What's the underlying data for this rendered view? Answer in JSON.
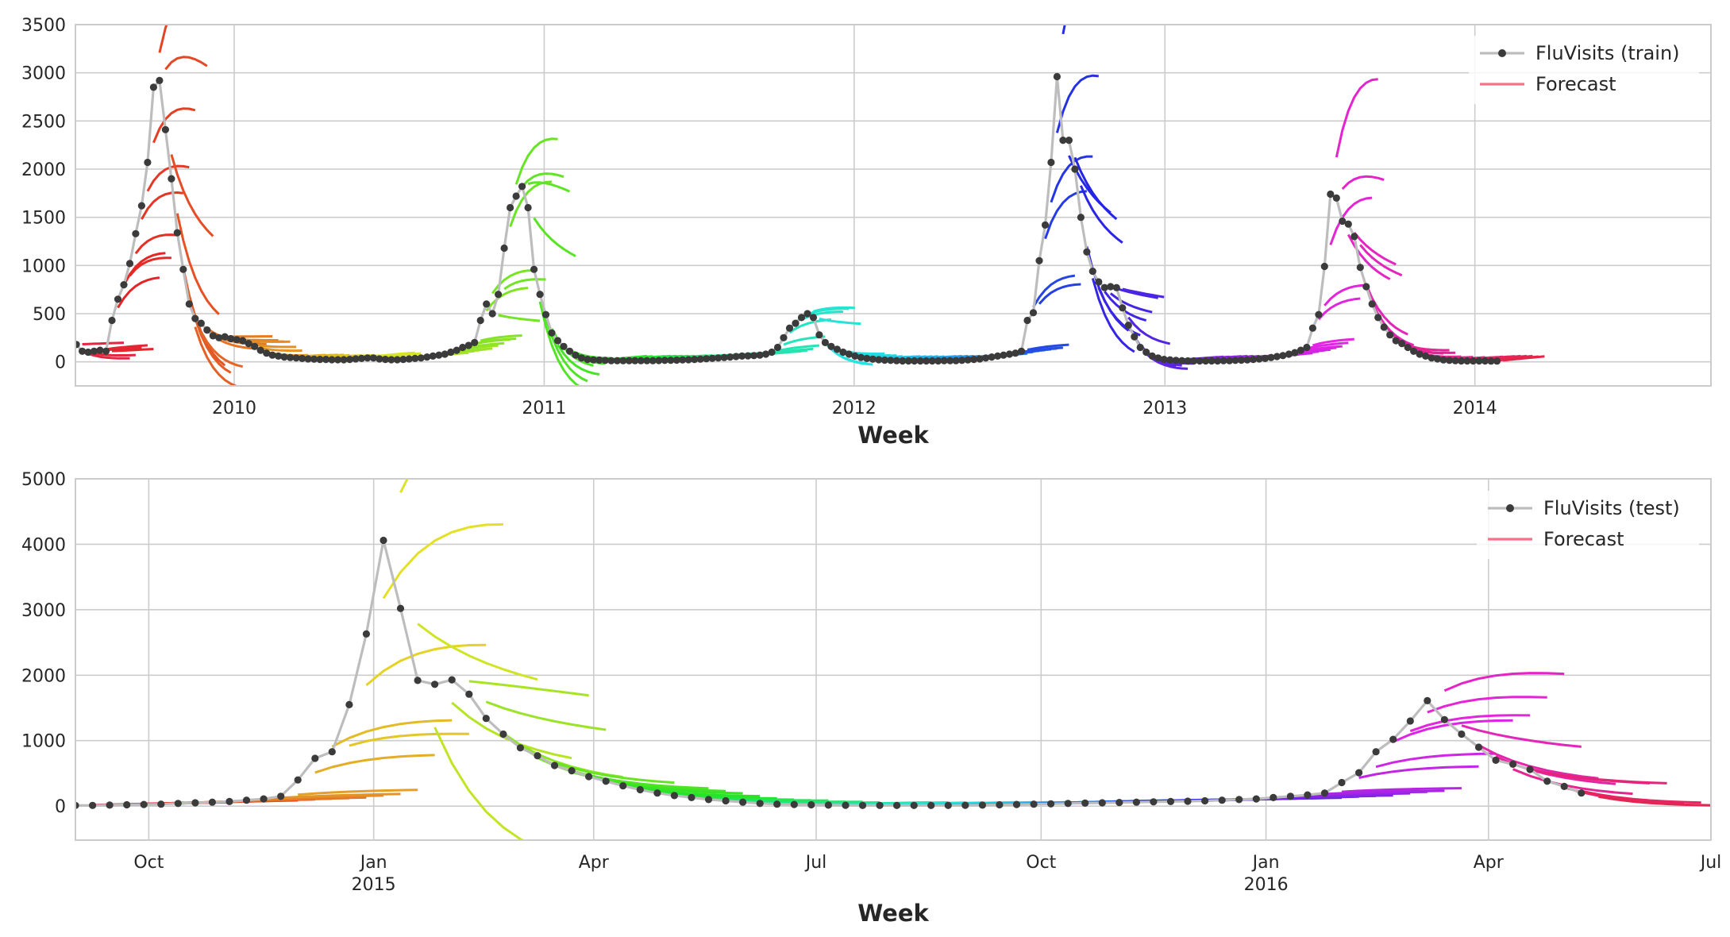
{
  "colors": {
    "background": "#ffffff",
    "grid": "#cccccc",
    "frame": "#cccccc",
    "observed_line": "#bdbdbd",
    "observed_marker": "#3b3b3b",
    "forecast_legend": "#f77189",
    "text": "#262626"
  },
  "chart_data": [
    {
      "type": "line",
      "title": "",
      "xlabel": "Week",
      "ylabel": "",
      "grid": true,
      "legend_placement": "top-right",
      "xlim": [
        "2009-06-28",
        "2014-10-06"
      ],
      "ylim": [
        -250,
        3500
      ],
      "x_ticks": [
        {
          "date": "2010-01-01",
          "label": "2010"
        },
        {
          "date": "2011-01-01",
          "label": "2011"
        },
        {
          "date": "2012-01-01",
          "label": "2012"
        },
        {
          "date": "2013-01-01",
          "label": "2013"
        },
        {
          "date": "2014-01-01",
          "label": "2014"
        }
      ],
      "y_ticks": [
        {
          "value": 0,
          "label": "0"
        },
        {
          "value": 500,
          "label": "500"
        },
        {
          "value": 1000,
          "label": "1000"
        },
        {
          "value": 1500,
          "label": "1500"
        },
        {
          "value": 2000,
          "label": "2000"
        },
        {
          "value": 2500,
          "label": "2500"
        },
        {
          "value": 3000,
          "label": "3000"
        },
        {
          "value": 3500,
          "label": "3500"
        }
      ],
      "legend": [
        {
          "label": "FluVisits (train)",
          "kind": "observed"
        },
        {
          "label": "Forecast",
          "kind": "forecast"
        }
      ],
      "observed": {
        "name": "FluVisits (train)",
        "start": "2009-06-29",
        "step_days": 7,
        "values": [
          180,
          110,
          100,
          110,
          120,
          110,
          430,
          650,
          800,
          1020,
          1330,
          1620,
          2070,
          2850,
          2920,
          2410,
          1900,
          1340,
          960,
          600,
          450,
          400,
          330,
          270,
          250,
          260,
          240,
          230,
          220,
          190,
          160,
          120,
          90,
          70,
          60,
          50,
          45,
          40,
          35,
          30,
          28,
          25,
          25,
          22,
          22,
          22,
          25,
          30,
          35,
          40,
          40,
          30,
          25,
          22,
          22,
          25,
          30,
          35,
          40,
          50,
          60,
          70,
          80,
          100,
          120,
          150,
          170,
          200,
          430,
          600,
          500,
          700,
          1180,
          1600,
          1720,
          1820,
          1600,
          960,
          700,
          490,
          300,
          220,
          160,
          110,
          70,
          40,
          25,
          20,
          18,
          15,
          12,
          12,
          12,
          12,
          12,
          12,
          12,
          12,
          14,
          15,
          16,
          18,
          20,
          22,
          25,
          28,
          32,
          36,
          40,
          45,
          50,
          55,
          60,
          62,
          65,
          70,
          80,
          100,
          150,
          250,
          350,
          400,
          460,
          500,
          460,
          280,
          200,
          160,
          130,
          100,
          80,
          60,
          45,
          35,
          28,
          22,
          18,
          15,
          12,
          10,
          10,
          10,
          10,
          10,
          10,
          10,
          12,
          12,
          12,
          15,
          20,
          25,
          30,
          40,
          50,
          60,
          70,
          80,
          90,
          110,
          430,
          510,
          1050,
          1420,
          2070,
          2960,
          2300,
          2300,
          2000,
          1500,
          1140,
          940,
          830,
          770,
          780,
          770,
          560,
          380,
          260,
          150,
          100,
          60,
          40,
          25,
          20,
          15,
          12,
          10,
          10,
          10,
          10,
          10,
          10,
          12,
          12,
          15,
          18,
          20,
          25,
          30,
          35,
          45,
          55,
          65,
          80,
          95,
          120,
          150,
          350,
          490,
          990,
          1740,
          1700,
          1460,
          1430,
          1300,
          980,
          780,
          600,
          460,
          360,
          280,
          220,
          190,
          150,
          110,
          80,
          60,
          40,
          30,
          20,
          15,
          12,
          10,
          10,
          10,
          10,
          10,
          8,
          8
        ]
      },
      "forecasts": {
        "name": "Forecast",
        "horizon_weeks": 8,
        "origin_step_weeks": 1
      }
    },
    {
      "type": "line",
      "title": "",
      "xlabel": "Week",
      "ylabel": "",
      "grid": true,
      "legend_placement": "top-right",
      "xlim": [
        "2014-09-01",
        "2016-07-01"
      ],
      "ylim": [
        -520,
        5000
      ],
      "x_ticks": [
        {
          "date": "2014-10-01",
          "label": "Oct",
          "label2": ""
        },
        {
          "date": "2015-01-01",
          "label": "Jan",
          "label2": "2015"
        },
        {
          "date": "2015-04-01",
          "label": "Apr",
          "label2": ""
        },
        {
          "date": "2015-07-01",
          "label": "Jul",
          "label2": ""
        },
        {
          "date": "2015-10-01",
          "label": "Oct",
          "label2": ""
        },
        {
          "date": "2016-01-01",
          "label": "Jan",
          "label2": "2016"
        },
        {
          "date": "2016-04-01",
          "label": "Apr",
          "label2": ""
        },
        {
          "date": "2016-07-01",
          "label": "Jul",
          "label2": ""
        }
      ],
      "y_ticks": [
        {
          "value": 0,
          "label": "0"
        },
        {
          "value": 1000,
          "label": "1000"
        },
        {
          "value": 2000,
          "label": "2000"
        },
        {
          "value": 3000,
          "label": "3000"
        },
        {
          "value": 4000,
          "label": "4000"
        },
        {
          "value": 5000,
          "label": "5000"
        }
      ],
      "legend": [
        {
          "label": "FluVisits (test)",
          "kind": "observed"
        },
        {
          "label": "Forecast",
          "kind": "forecast"
        }
      ],
      "observed": {
        "name": "FluVisits (test)",
        "start": "2014-09-01",
        "step_days": 7,
        "values": [
          10,
          10,
          15,
          20,
          25,
          30,
          40,
          50,
          60,
          70,
          90,
          110,
          150,
          400,
          730,
          830,
          1550,
          2630,
          4060,
          3020,
          1920,
          1860,
          1930,
          1710,
          1340,
          1100,
          890,
          770,
          620,
          540,
          450,
          380,
          310,
          250,
          200,
          160,
          130,
          100,
          80,
          60,
          40,
          30,
          25,
          20,
          15,
          12,
          10,
          10,
          10,
          10,
          10,
          10,
          12,
          15,
          20,
          25,
          30,
          35,
          40,
          45,
          50,
          55,
          60,
          65,
          70,
          75,
          80,
          90,
          100,
          110,
          130,
          150,
          170,
          200,
          360,
          510,
          830,
          1020,
          1300,
          1610,
          1320,
          1100,
          900,
          700,
          640,
          560,
          380,
          300,
          200
        ]
      },
      "forecasts": {
        "name": "Forecast",
        "horizon_weeks": 8,
        "origin_step_weeks": 1
      }
    }
  ]
}
